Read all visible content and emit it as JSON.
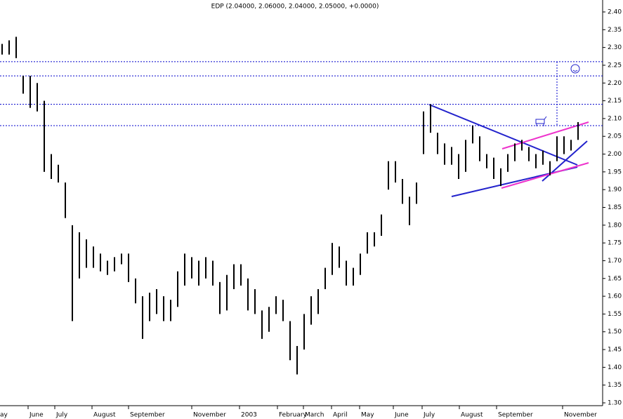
{
  "chart_data": {
    "type": "hilo",
    "title": "EDP (2.04000, 2.06000, 2.04000, 2.05000, +0.0000)",
    "color": "#000000",
    "high": [
      2.31,
      2.32,
      2.33,
      2.22,
      2.22,
      2.2,
      2.15,
      2.0,
      1.97,
      1.92,
      1.8,
      1.78,
      1.76,
      1.74,
      1.72,
      1.7,
      1.71,
      1.72,
      1.72,
      1.65,
      1.6,
      1.61,
      1.62,
      1.6,
      1.59,
      1.67,
      1.72,
      1.71,
      1.7,
      1.71,
      1.7,
      1.64,
      1.66,
      1.69,
      1.69,
      1.65,
      1.62,
      1.56,
      1.57,
      1.6,
      1.59,
      1.53,
      1.46,
      1.55,
      1.6,
      1.62,
      1.68,
      1.75,
      1.74,
      1.7,
      1.68,
      1.72,
      1.78,
      1.78,
      1.83,
      1.98,
      1.98,
      1.93,
      1.88,
      1.92,
      2.12,
      2.14,
      2.06,
      2.03,
      2.02,
      2.0,
      2.04,
      2.08,
      2.05,
      2.0,
      1.99,
      1.96,
      2.0,
      2.03,
      2.04,
      2.02,
      2.0,
      2.01,
      1.98,
      2.05,
      2.05,
      2.04,
      2.09
    ],
    "low": [
      2.28,
      2.28,
      2.27,
      2.17,
      2.13,
      2.12,
      1.95,
      1.93,
      1.92,
      1.82,
      1.53,
      1.65,
      1.68,
      1.68,
      1.67,
      1.66,
      1.67,
      1.69,
      1.64,
      1.58,
      1.48,
      1.53,
      1.55,
      1.53,
      1.53,
      1.57,
      1.63,
      1.65,
      1.63,
      1.65,
      1.63,
      1.55,
      1.56,
      1.62,
      1.63,
      1.56,
      1.55,
      1.48,
      1.5,
      1.55,
      1.53,
      1.42,
      1.38,
      1.45,
      1.52,
      1.55,
      1.62,
      1.66,
      1.68,
      1.63,
      1.63,
      1.66,
      1.72,
      1.74,
      1.77,
      1.9,
      1.92,
      1.86,
      1.8,
      1.86,
      2.0,
      2.06,
      2.0,
      1.97,
      1.97,
      1.93,
      1.95,
      2.03,
      1.98,
      1.96,
      1.93,
      1.91,
      1.95,
      1.98,
      2.01,
      1.98,
      1.96,
      1.97,
      1.94,
      1.98,
      2.0,
      2.01,
      2.04
    ],
    "x_labels": [
      "ay",
      "June",
      "July",
      "August",
      "September",
      "November",
      "2003",
      "February",
      "March",
      "April",
      "May",
      "June",
      "July",
      "August",
      "September",
      "November"
    ],
    "hlines": [
      2.26,
      2.22,
      2.14,
      2.08
    ],
    "ylim": [
      1.3,
      2.4
    ],
    "yticks": [
      {
        "value": 1.3,
        "label": "1.30"
      },
      {
        "value": 1.35,
        "label": "1.35"
      },
      {
        "value": 1.4,
        "label": "1.40"
      },
      {
        "value": 1.45,
        "label": "1.45"
      },
      {
        "value": 1.5,
        "label": "1.50"
      },
      {
        "value": 1.55,
        "label": "1.55"
      },
      {
        "value": 1.6,
        "label": "1.60"
      },
      {
        "value": 1.65,
        "label": "1.65"
      },
      {
        "value": 1.7,
        "label": "1.70"
      },
      {
        "value": 1.75,
        "label": "1.75"
      },
      {
        "value": 1.8,
        "label": "1.80"
      },
      {
        "value": 1.85,
        "label": "1.85"
      },
      {
        "value": 1.9,
        "label": "1.90"
      },
      {
        "value": 1.95,
        "label": "1.95"
      },
      {
        "value": 2.0,
        "label": "2.00"
      },
      {
        "value": 2.05,
        "label": "2.05"
      },
      {
        "value": 2.1,
        "label": "2.10"
      },
      {
        "value": 2.15,
        "label": "2.15"
      },
      {
        "value": 2.2,
        "label": "2.20"
      },
      {
        "value": 2.25,
        "label": "2.25"
      },
      {
        "value": 2.3,
        "label": "2.30"
      },
      {
        "value": 2.35,
        "label": "2.35"
      },
      {
        "value": 2.4,
        "label": "2.40"
      }
    ]
  }
}
